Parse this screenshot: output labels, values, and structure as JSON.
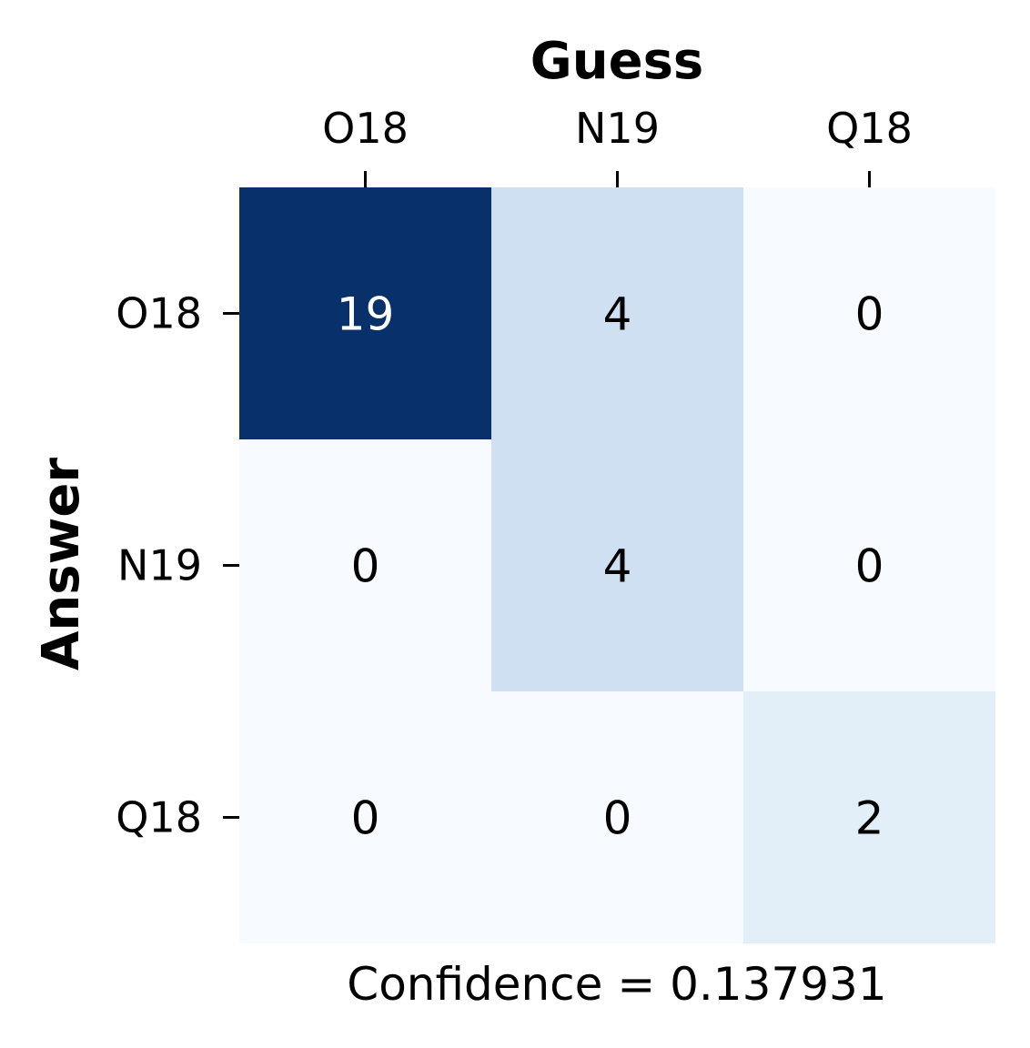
{
  "chart_data": {
    "type": "heatmap",
    "title": "Guess",
    "xlabel": "Guess",
    "ylabel": "Answer",
    "x_categories": [
      "O18",
      "N19",
      "Q18"
    ],
    "y_categories": [
      "O18",
      "N19",
      "Q18"
    ],
    "values": [
      [
        19,
        4,
        0
      ],
      [
        0,
        4,
        0
      ],
      [
        0,
        0,
        2
      ]
    ],
    "colormap": "Blues",
    "color_low": "#f7fbff",
    "color_high": "#08306b",
    "text_dark": "#000000",
    "text_light": "#ffffff",
    "footer": "Confidence = 0.137931"
  }
}
